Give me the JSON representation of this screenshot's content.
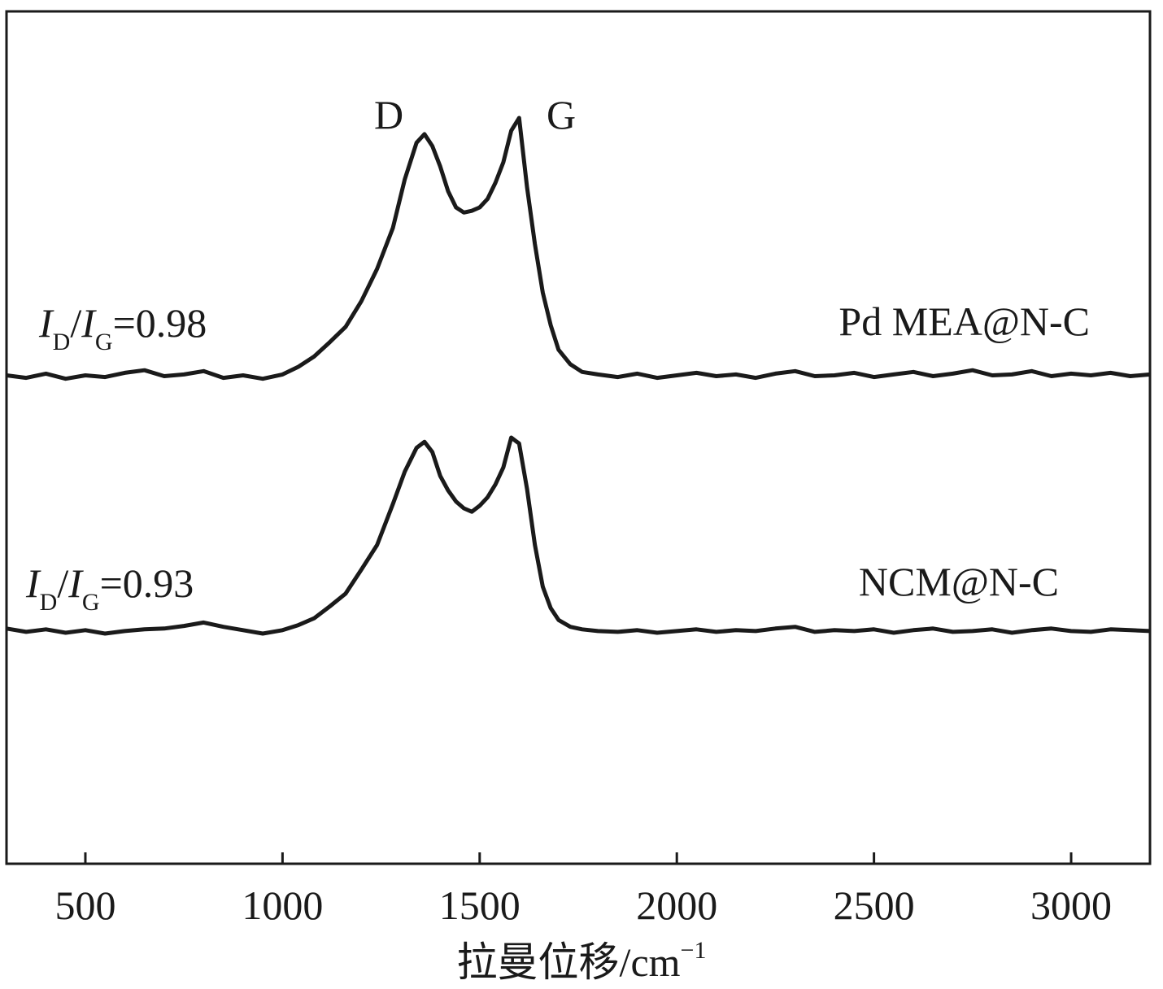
{
  "chart_data": {
    "type": "line",
    "x_label": {
      "text": "拉曼位移/cm",
      "sup": "−1"
    },
    "peak_labels": [
      "D",
      "G"
    ],
    "ratio_labels": [
      {
        "parts": [
          "I",
          "D",
          "/",
          "I",
          "G",
          "=0.98"
        ]
      },
      {
        "parts": [
          "I",
          "D",
          "/",
          "I",
          "G",
          "=0.93"
        ]
      }
    ],
    "x": [
      300,
      350,
      400,
      450,
      500,
      550,
      600,
      650,
      700,
      750,
      800,
      850,
      900,
      950,
      1000,
      1040,
      1080,
      1120,
      1160,
      1200,
      1240,
      1280,
      1310,
      1340,
      1360,
      1380,
      1400,
      1420,
      1440,
      1460,
      1480,
      1500,
      1520,
      1540,
      1560,
      1580,
      1600,
      1620,
      1640,
      1660,
      1680,
      1700,
      1730,
      1760,
      1800,
      1850,
      1900,
      1950,
      2000,
      2050,
      2100,
      2150,
      2200,
      2250,
      2300,
      2350,
      2400,
      2450,
      2500,
      2550,
      2600,
      2650,
      2700,
      2750,
      2800,
      2850,
      2900,
      2950,
      3000,
      3050,
      3100,
      3150,
      3200
    ],
    "series": [
      {
        "name": "Pd MEA@N-C",
        "color": "#1a1a1a",
        "values": [
          57.3,
          57.0,
          57.5,
          56.9,
          57.3,
          57.1,
          57.6,
          57.9,
          57.2,
          57.4,
          57.8,
          57.0,
          57.3,
          56.9,
          57.4,
          58.3,
          59.5,
          61.2,
          63.0,
          66.0,
          69.8,
          74.6,
          80.3,
          84.6,
          85.6,
          84.2,
          81.8,
          78.9,
          77.0,
          76.4,
          76.6,
          77.0,
          78.0,
          79.9,
          82.3,
          86.0,
          87.5,
          79.4,
          72.7,
          67.0,
          63.2,
          60.3,
          58.6,
          57.7,
          57.4,
          57.1,
          57.5,
          57.0,
          57.3,
          57.6,
          57.2,
          57.4,
          57.0,
          57.5,
          57.8,
          57.2,
          57.3,
          57.6,
          57.1,
          57.4,
          57.7,
          57.2,
          57.5,
          57.9,
          57.3,
          57.4,
          57.8,
          57.2,
          57.5,
          57.3,
          57.6,
          57.2,
          57.4
        ]
      },
      {
        "name": "NCM@N-C",
        "color": "#1a1a1a",
        "values": [
          27.6,
          27.2,
          27.5,
          27.1,
          27.4,
          27.0,
          27.3,
          27.5,
          27.6,
          27.9,
          28.3,
          27.8,
          27.4,
          27.0,
          27.4,
          28.0,
          28.8,
          30.2,
          31.7,
          34.5,
          37.4,
          42.2,
          46.0,
          48.8,
          49.5,
          48.3,
          45.5,
          43.8,
          42.5,
          41.7,
          41.3,
          42.0,
          43.0,
          44.5,
          46.5,
          50.0,
          49.3,
          44.0,
          37.4,
          32.5,
          30.0,
          28.6,
          27.8,
          27.5,
          27.3,
          27.2,
          27.4,
          27.1,
          27.3,
          27.5,
          27.2,
          27.4,
          27.3,
          27.6,
          27.8,
          27.2,
          27.4,
          27.3,
          27.5,
          27.1,
          27.4,
          27.6,
          27.2,
          27.3,
          27.5,
          27.1,
          27.4,
          27.6,
          27.3,
          27.2,
          27.5,
          27.4,
          27.3
        ]
      }
    ],
    "xlim": [
      300,
      3200
    ],
    "xticks": [
      500,
      1000,
      1500,
      2000,
      2500,
      3000
    ],
    "ylim": [
      0,
      100
    ],
    "grid": false
  }
}
